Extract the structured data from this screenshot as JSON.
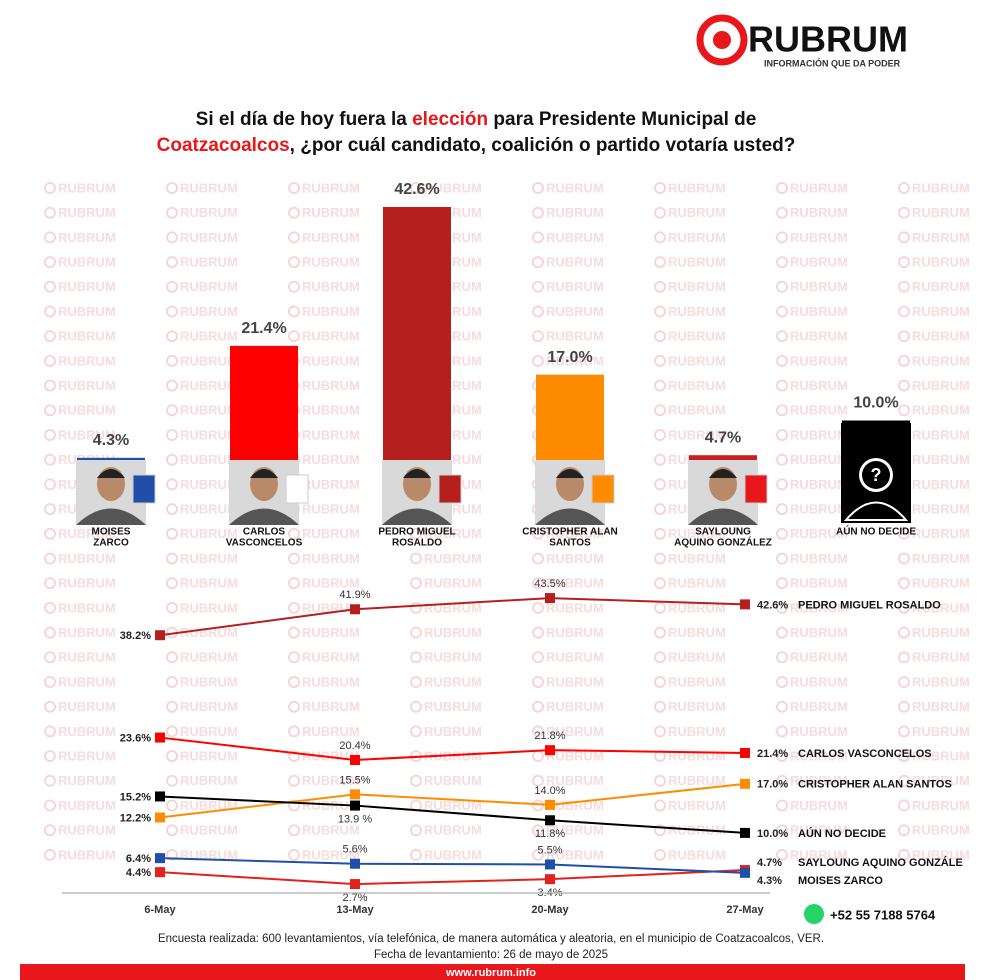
{
  "logo": {
    "name": "RUBRUM",
    "tagline": "INFORMACIÓN QUE DA PODER"
  },
  "watermark": "RUBRUM",
  "title": [
    [
      {
        "text": "Si el día de hoy fuera la ",
        "color": "#111111"
      },
      {
        "text": "elección",
        "color": "#e8171b"
      },
      {
        "text": " para Presidente Municipal de",
        "color": "#111111"
      }
    ],
    [
      {
        "text": "Coatzacoalcos",
        "color": "#e8171b"
      },
      {
        "text": ", ¿por cuál candidato, coalición o partido votaría usted?",
        "color": "#111111"
      }
    ]
  ],
  "unknown_symbol": "?",
  "chart_data": [
    {
      "type": "bar",
      "categories": [
        [
          "MOISES",
          "ZARCO"
        ],
        [
          "CARLOS",
          "VASCONCELOS"
        ],
        [
          "PEDRO MIGUEL",
          "ROSALDO"
        ],
        [
          "CRISTOPHER ALAN",
          "SANTOS"
        ],
        [
          "SAYLOUNG",
          "AQUINO GONZÁLEZ"
        ],
        [
          "AÚN NO DECIDE"
        ]
      ],
      "values": [
        4.3,
        21.4,
        42.6,
        17.0,
        4.7,
        10.0
      ],
      "value_labels": [
        "4.3%",
        "21.4%",
        "42.6%",
        "17.0%",
        "4.7%",
        "10.0%"
      ],
      "colors": [
        "#1f4fa8",
        "#ff0000",
        "#b5201e",
        "#ff8c00",
        "#c8201e",
        "#000000"
      ]
    },
    {
      "type": "line",
      "x": [
        "6-May",
        "13-May",
        "20-May",
        "27-May"
      ],
      "series": [
        {
          "name": "PEDRO MIGUEL ROSALDO",
          "color": "#b5201e",
          "values": [
            38.2,
            41.9,
            43.5,
            42.6
          ],
          "value_labels": [
            "38.2%",
            "41.9%",
            "43.5%",
            "42.6%"
          ]
        },
        {
          "name": "CARLOS VASCONCELOS",
          "color": "#ff0000",
          "values": [
            23.6,
            20.4,
            21.8,
            21.4
          ],
          "value_labels": [
            "23.6%",
            "20.4%",
            "21.8%",
            "21.4%"
          ]
        },
        {
          "name": "CRISTOPHER ALAN SANTOS",
          "color": "#ff8c00",
          "values": [
            12.2,
            15.5,
            14.0,
            17.0
          ],
          "value_labels": [
            "12.2%",
            "15.5%",
            "14.0%",
            "17.0%"
          ]
        },
        {
          "name": "AÚN NO DECIDE",
          "color": "#000000",
          "values": [
            15.2,
            13.9,
            11.8,
            10.0
          ],
          "value_labels": [
            "15.2%",
            "13.9 %",
            "11.8%",
            "10.0%"
          ]
        },
        {
          "name": "SAYLOUNG AQUINO GONZÁLE",
          "color": "#e0231e",
          "values": [
            4.4,
            2.7,
            3.4,
            4.7
          ],
          "value_labels": [
            "4.4%",
            "2.7%",
            "3.4%",
            "4.7%"
          ]
        },
        {
          "name": "MOISES ZARCO",
          "color": "#1f4fa8",
          "values": [
            6.4,
            5.6,
            5.5,
            4.3
          ],
          "value_labels": [
            "6.4%",
            "5.6%",
            "5.5%",
            "4.3%"
          ]
        }
      ]
    }
  ],
  "footer": {
    "phone": "+52 55 7188 5764",
    "note": "Encuesta realizada: 600 levantamientos, vía telefónica, de manera automática y aleatoria, en el municipio de Coatzacoalcos, VER.",
    "date": "Fecha de levantamiento: 26 de mayo de 2025",
    "url": "www.rubrum.info"
  }
}
